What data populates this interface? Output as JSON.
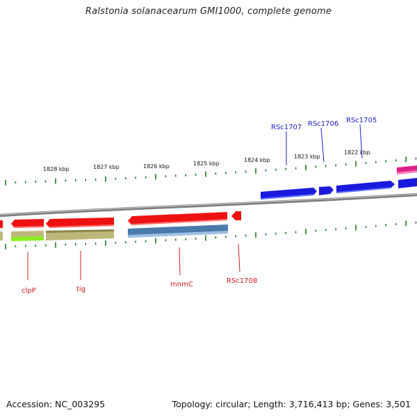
{
  "header": {
    "title": "Ralstonia solanacearum GMI1000, complete genome"
  },
  "footer": {
    "accession": "Accession: NC_003295",
    "summary": "Topology: circular; Length: 3,716,413 bp; Genes: 3,501"
  },
  "scale": {
    "labels": [
      "1828 kbp",
      "1827 kbp",
      "1826 kbp",
      "1825 kbp",
      "1824 kbp",
      "1823 kbp",
      "1822 kbp"
    ]
  },
  "genes": {
    "forward": [
      "RSc1707",
      "RSc1706",
      "RSc1705"
    ],
    "reverse": [
      "clpP",
      "tig",
      "mnmC",
      "RSc1708"
    ]
  },
  "colors": {
    "forward_label": "#1a1acc",
    "reverse_label": "#cc1a1a",
    "forward_gene": "#1a1add",
    "reverse_gene": "#ee1111",
    "rna_gene": "#e0208a",
    "cds_olive": "#bdb77a",
    "cds_steel": "#4a7aaa",
    "cds_lime": "#88ee22",
    "tick": "#1e7a1e",
    "backbone": "#8a8a8a"
  }
}
